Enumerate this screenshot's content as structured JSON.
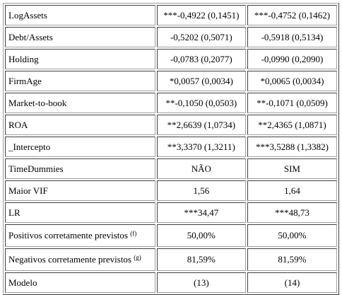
{
  "table": {
    "rows": [
      {
        "label": "LogAssets",
        "col1": "***-0,4922 (0,1451)",
        "col2": "***-0,4752 (0,1462)"
      },
      {
        "label": "Debt/Assets",
        "col1": "-0,5202 (0,5071)",
        "col2": "-0,5918 (0,5134)"
      },
      {
        "label": "Holding",
        "col1": "-0,0783 (0,2077)",
        "col2": "-0,0990 (0,2090)"
      },
      {
        "label": "FirmAge",
        "col1": "*0,0057 (0,0034)",
        "col2": "*0,0065 (0,0034)"
      },
      {
        "label": "Market-to-book",
        "col1": "**-0,1050 (0,0503)",
        "col2": "**-0,1071 (0,0509)"
      },
      {
        "label": "ROA",
        "col1": "**2,6639 (1,0734)",
        "col2": "**2,4365 (1,0871)"
      },
      {
        "label": "_Intercepto",
        "col1": "**3,3370 (1,3211)",
        "col2": "***3,5288 (1,3382)"
      },
      {
        "label": "TimeDummies",
        "col1": "NÃO",
        "col2": "SIM"
      },
      {
        "label": "Maior VIF",
        "col1": "1,56",
        "col2": "1,64"
      },
      {
        "label": "LR",
        "col1": "***34,47",
        "col2": "***48,73"
      },
      {
        "label": "Positivos corretamente previstos",
        "sup": "(f)",
        "col1": "50,00%",
        "col2": "50,00%"
      },
      {
        "label": "Negativos corretamente previstos",
        "sup": "(g)",
        "col1": "81,59%",
        "col2": "81,59%"
      },
      {
        "label": "Modelo",
        "col1": "(13)",
        "col2": "(14)"
      }
    ]
  }
}
